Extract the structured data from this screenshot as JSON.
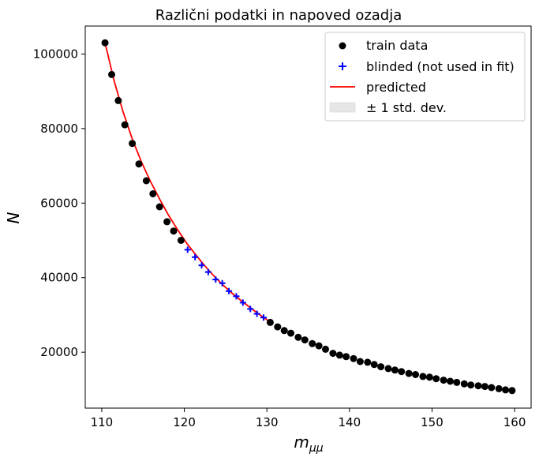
{
  "chart_data": {
    "type": "scatter",
    "title": "Različni podatki in napoved ozadja",
    "xlabel_main": "m",
    "xlabel_sub": "μμ",
    "ylabel": "N",
    "xlim": [
      108,
      162
    ],
    "ylim": [
      5000,
      107500
    ],
    "xticks": [
      110,
      120,
      130,
      140,
      150,
      160
    ],
    "yticks": [
      20000,
      40000,
      60000,
      80000,
      100000
    ],
    "legend_position": "top-right",
    "legend": [
      {
        "label": "train data",
        "marker": "dot"
      },
      {
        "label": "blinded (not used in fit)",
        "marker": "plus"
      },
      {
        "label": "predicted",
        "marker": "line"
      },
      {
        "label": "± 1 std. dev.",
        "marker": "band"
      }
    ],
    "colors": {
      "train": "#000000",
      "blinded": "#0000ff",
      "predicted": "#ff0000",
      "band": "#e6e6e6"
    },
    "series": [
      {
        "name": "train data",
        "x": [
          110.4,
          111.2,
          112.0,
          112.8,
          113.7,
          114.5,
          115.4,
          116.2,
          117.0,
          117.9,
          118.7,
          119.6,
          130.4,
          131.3,
          132.1,
          132.9,
          133.8,
          134.6,
          135.5,
          136.3,
          137.1,
          138.0,
          138.8,
          139.6,
          140.5,
          141.3,
          142.2,
          143.0,
          143.8,
          144.7,
          145.5,
          146.3,
          147.2,
          148.0,
          148.9,
          149.7,
          150.5,
          151.4,
          152.2,
          153.0,
          153.9,
          154.7,
          155.6,
          156.4,
          157.2,
          158.1,
          158.9,
          159.7
        ],
        "y": [
          103000,
          94500,
          87500,
          81000,
          76000,
          70500,
          66000,
          62500,
          59000,
          55000,
          52500,
          50000,
          28000,
          26800,
          25800,
          25100,
          24000,
          23300,
          22300,
          21700,
          20800,
          19700,
          19200,
          18800,
          18300,
          17500,
          17300,
          16700,
          16100,
          15600,
          15200,
          14800,
          14300,
          14000,
          13500,
          13300,
          12900,
          12500,
          12200,
          11900,
          11500,
          11200,
          11000,
          10800,
          10500,
          10200,
          9900,
          9700
        ]
      },
      {
        "name": "blinded (not used in fit)",
        "x": [
          120.4,
          121.3,
          122.1,
          122.9,
          123.8,
          124.6,
          125.4,
          126.3,
          127.1,
          128.0,
          128.8,
          129.6
        ],
        "y": [
          47500,
          45500,
          43300,
          41500,
          39500,
          38500,
          36400,
          35000,
          33300,
          31600,
          30300,
          29300
        ]
      },
      {
        "name": "predicted",
        "x": [
          110.4,
          111.5,
          112.6,
          113.7,
          114.8,
          115.9,
          117.0,
          118.1,
          119.2,
          120.3,
          121.4,
          122.5,
          123.6,
          124.7,
          125.8,
          126.9,
          128.0,
          129.1,
          130.2
        ],
        "y": [
          103000,
          92800,
          84400,
          77200,
          71100,
          65800,
          61100,
          56700,
          52800,
          49200,
          46100,
          43100,
          40400,
          38000,
          35800,
          33800,
          31900,
          30100,
          28400
        ]
      }
    ]
  }
}
